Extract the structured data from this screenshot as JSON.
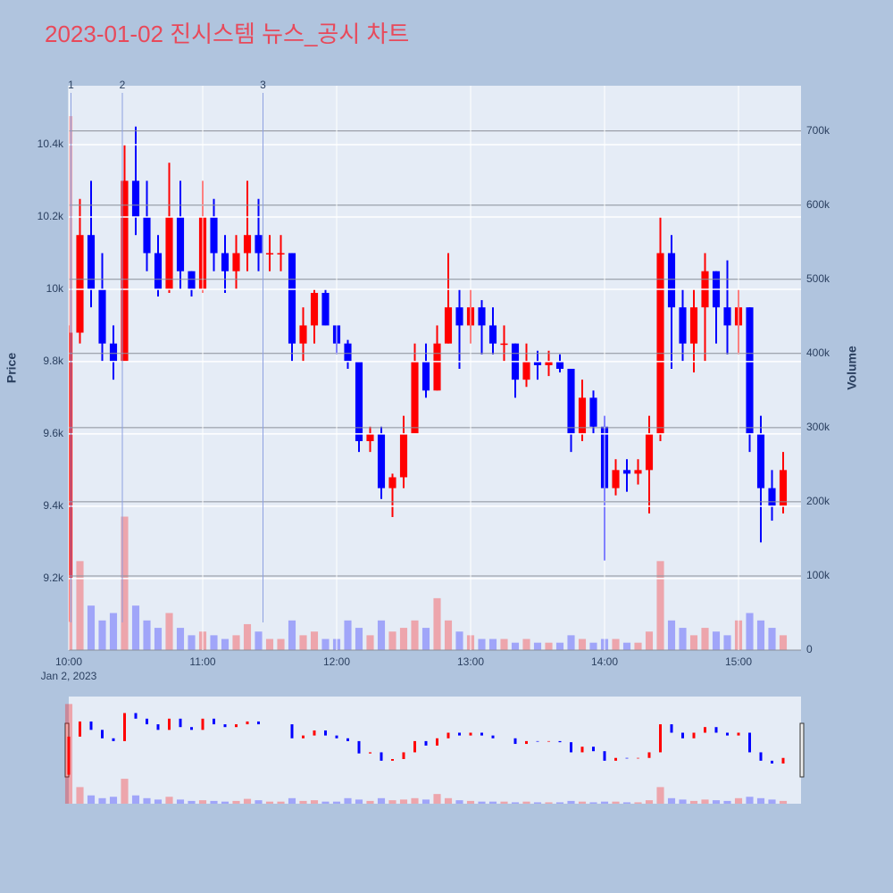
{
  "chart_data": {
    "type": "candlestick",
    "title": "2023-01-02 진시스템 뉴스_공시 차트",
    "x": [
      "2023-01-02 10:00",
      "2023-01-02 10:05",
      "2023-01-02 10:10",
      "2023-01-02 10:15",
      "2023-01-02 10:20",
      "2023-01-02 10:25",
      "2023-01-02 10:30",
      "2023-01-02 10:35",
      "2023-01-02 10:40",
      "2023-01-02 10:45",
      "2023-01-02 10:50",
      "2023-01-02 10:55",
      "2023-01-02 11:00",
      "2023-01-02 11:05",
      "2023-01-02 11:10",
      "2023-01-02 11:15",
      "2023-01-02 11:20",
      "2023-01-02 11:25",
      "2023-01-02 11:30",
      "2023-01-02 11:35",
      "2023-01-02 11:40",
      "2023-01-02 11:45",
      "2023-01-02 11:50",
      "2023-01-02 11:55",
      "2023-01-02 12:00",
      "2023-01-02 12:05",
      "2023-01-02 12:10",
      "2023-01-02 12:15",
      "2023-01-02 12:20",
      "2023-01-02 12:25",
      "2023-01-02 12:30",
      "2023-01-02 12:35",
      "2023-01-02 12:40",
      "2023-01-02 12:45",
      "2023-01-02 12:50",
      "2023-01-02 12:55",
      "2023-01-02 13:00",
      "2023-01-02 13:05",
      "2023-01-02 13:10",
      "2023-01-02 13:15",
      "2023-01-02 13:20",
      "2023-01-02 13:25",
      "2023-01-02 13:30",
      "2023-01-02 13:35",
      "2023-01-02 13:40",
      "2023-01-02 13:45",
      "2023-01-02 13:50",
      "2023-01-02 13:55",
      "2023-01-02 14:00",
      "2023-01-02 14:05",
      "2023-01-02 14:10",
      "2023-01-02 14:15",
      "2023-01-02 14:20",
      "2023-01-02 14:25",
      "2023-01-02 14:30",
      "2023-01-02 14:35",
      "2023-01-02 14:40",
      "2023-01-02 14:45",
      "2023-01-02 14:50",
      "2023-01-02 14:55",
      "2023-01-02 15:00",
      "2023-01-02 15:05",
      "2023-01-02 15:10",
      "2023-01-02 15:15",
      "2023-01-02 15:20"
    ],
    "open": [
      9200,
      9880,
      10150,
      10000,
      9850,
      9800,
      10300,
      10200,
      10100,
      10000,
      10200,
      10050,
      10000,
      10200,
      10100,
      10050,
      10100,
      10150,
      10100,
      10100,
      10100,
      9850,
      9900,
      9990,
      9900,
      9850,
      9800,
      9580,
      9600,
      9450,
      9480,
      9600,
      9800,
      9720,
      9850,
      9950,
      9900,
      9950,
      9900,
      9850,
      9850,
      9750,
      9800,
      9790,
      9800,
      9780,
      9600,
      9700,
      9620,
      9450,
      9500,
      9490,
      9500,
      9600,
      10100,
      9950,
      9850,
      9950,
      10050,
      9950,
      9900,
      9950,
      9600,
      9450,
      9400
    ],
    "high": [
      9900,
      10250,
      10300,
      10100,
      9900,
      10400,
      10450,
      10300,
      10150,
      10350,
      10300,
      10050,
      10300,
      10250,
      10150,
      10150,
      10300,
      10250,
      10150,
      10150,
      10100,
      9950,
      10000,
      10000,
      9900,
      9860,
      9800,
      9620,
      9620,
      9490,
      9650,
      9850,
      9850,
      9900,
      10100,
      10000,
      10000,
      9970,
      9950,
      9900,
      9850,
      9850,
      9830,
      9830,
      9820,
      9780,
      9750,
      9720,
      9650,
      9530,
      9530,
      9530,
      9650,
      10200,
      10150,
      10000,
      10000,
      10100,
      10050,
      10080,
      10000,
      9950,
      9650,
      9500,
      9550
    ],
    "low": [
      9080,
      9850,
      9950,
      9800,
      9750,
      9800,
      10150,
      10050,
      9980,
      9990,
      10000,
      9980,
      9990,
      10050,
      9990,
      10000,
      10050,
      10050,
      10050,
      10050,
      9800,
      9800,
      9850,
      9900,
      9820,
      9780,
      9550,
      9550,
      9420,
      9370,
      9450,
      9600,
      9700,
      9720,
      9850,
      9780,
      9850,
      9820,
      9820,
      9800,
      9700,
      9730,
      9750,
      9760,
      9770,
      9550,
      9580,
      9600,
      9250,
      9430,
      9440,
      9460,
      9380,
      9580,
      9780,
      9800,
      9770,
      9800,
      9850,
      9820,
      9820,
      9550,
      9300,
      9360,
      9380
    ],
    "close": [
      9880,
      10150,
      10000,
      9850,
      9800,
      10300,
      10200,
      10100,
      10000,
      10200,
      10050,
      10000,
      10200,
      10100,
      10050,
      10100,
      10150,
      10100,
      10100,
      10100,
      9850,
      9900,
      9990,
      9900,
      9850,
      9800,
      9580,
      9600,
      9450,
      9480,
      9600,
      9800,
      9720,
      9850,
      9950,
      9900,
      9950,
      9900,
      9850,
      9850,
      9750,
      9800,
      9790,
      9800,
      9780,
      9600,
      9700,
      9620,
      9450,
      9500,
      9490,
      9500,
      9600,
      10100,
      9950,
      9850,
      9950,
      10050,
      9950,
      9900,
      9950,
      9600,
      9450,
      9400,
      9500
    ],
    "volume": [
      720000,
      120000,
      60000,
      40000,
      50000,
      180000,
      60000,
      40000,
      30000,
      50000,
      30000,
      20000,
      25000,
      20000,
      15000,
      20000,
      35000,
      25000,
      15000,
      15000,
      40000,
      20000,
      25000,
      15000,
      15000,
      40000,
      30000,
      20000,
      40000,
      25000,
      30000,
      40000,
      30000,
      70000,
      40000,
      25000,
      20000,
      15000,
      15000,
      15000,
      10000,
      15000,
      10000,
      10000,
      10000,
      20000,
      15000,
      10000,
      15000,
      15000,
      10000,
      10000,
      25000,
      120000,
      40000,
      30000,
      20000,
      30000,
      25000,
      20000,
      40000,
      50000,
      40000,
      30000,
      20000
    ],
    "colors": {
      "increasing": "#ff0000",
      "decreasing": "#0000ff"
    },
    "xlim": [
      "2023-01-02 10:00",
      "2023-01-02 15:28"
    ],
    "xticks": [
      {
        "value": "2023-01-02 10:00",
        "label": "10:00"
      },
      {
        "value": "2023-01-02 11:00",
        "label": "11:00"
      },
      {
        "value": "2023-01-02 12:00",
        "label": "12:00"
      },
      {
        "value": "2023-01-02 13:00",
        "label": "13:00"
      },
      {
        "value": "2023-01-02 14:00",
        "label": "14:00"
      },
      {
        "value": "2023-01-02 15:00",
        "label": "15:00"
      }
    ],
    "x_date_label": "Jan 2, 2023",
    "ylabel": "Price",
    "ylim": [
      9002,
      10563
    ],
    "yticks": [
      {
        "value": 9200,
        "label": "9.2k"
      },
      {
        "value": 9400,
        "label": "9.4k"
      },
      {
        "value": 9600,
        "label": "9.6k"
      },
      {
        "value": 9800,
        "label": "9.8k"
      },
      {
        "value": 10000,
        "label": "10k"
      },
      {
        "value": 10200,
        "label": "10.2k"
      },
      {
        "value": 10400,
        "label": "10.4k"
      }
    ],
    "y2label": "Volume",
    "y2lim": [
      0,
      761000
    ],
    "y2ticks": [
      0,
      {
        "value": 100000,
        "label": "100k"
      },
      {
        "value": 200000,
        "label": "200k"
      },
      {
        "value": 300000,
        "label": "300k"
      },
      {
        "value": 400000,
        "label": "400k"
      },
      {
        "value": 500000,
        "label": "500k"
      },
      {
        "value": 600000,
        "label": "600k"
      },
      {
        "value": 700000,
        "label": "700k"
      }
    ],
    "annotations": [
      {
        "text": "1",
        "x": "2023-01-02 10:01"
      },
      {
        "text": "2",
        "x": "2023-01-02 10:24"
      },
      {
        "text": "3",
        "x": "2023-01-02 11:27"
      }
    ]
  }
}
